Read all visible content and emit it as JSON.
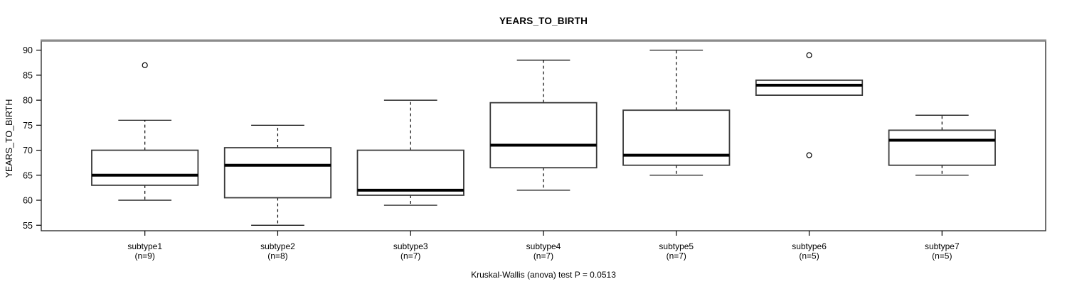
{
  "chart_data": {
    "type": "boxplot",
    "title": "YEARS_TO_BIRTH",
    "ylabel": "YEARS_TO_BIRTH",
    "caption": "Kruskal-Wallis (anova) test P = 0.0513",
    "yticks": [
      55,
      60,
      65,
      70,
      75,
      80,
      85,
      90
    ],
    "ylim": [
      53.9,
      91.8
    ],
    "grid": false,
    "legend": "none",
    "groups": [
      {
        "label": "subtype1",
        "n_label": "(n=9)",
        "n": 9,
        "whisker_low": 60,
        "q1": 63,
        "median": 65,
        "q3": 70,
        "whisker_high": 76,
        "outliers": [
          87
        ]
      },
      {
        "label": "subtype2",
        "n_label": "(n=8)",
        "n": 8,
        "whisker_low": 55,
        "q1": 60.5,
        "median": 67,
        "q3": 70.5,
        "whisker_high": 75,
        "outliers": []
      },
      {
        "label": "subtype3",
        "n_label": "(n=7)",
        "n": 7,
        "whisker_low": 59,
        "q1": 61,
        "median": 62,
        "q3": 70,
        "whisker_high": 80,
        "outliers": []
      },
      {
        "label": "subtype4",
        "n_label": "(n=7)",
        "n": 7,
        "whisker_low": 62,
        "q1": 66.5,
        "median": 71,
        "q3": 79.5,
        "whisker_high": 88,
        "outliers": []
      },
      {
        "label": "subtype5",
        "n_label": "(n=7)",
        "n": 7,
        "whisker_low": 65,
        "q1": 67,
        "median": 69,
        "q3": 78,
        "whisker_high": 90,
        "outliers": []
      },
      {
        "label": "subtype6",
        "n_label": "(n=5)",
        "n": 5,
        "whisker_low": 81,
        "q1": 81,
        "median": 83,
        "q3": 84,
        "whisker_high": 84,
        "outliers": [
          89,
          69
        ]
      },
      {
        "label": "subtype7",
        "n_label": "(n=5)",
        "n": 5,
        "whisker_low": 65,
        "q1": 67,
        "median": 72,
        "q3": 74,
        "whisker_high": 77,
        "outliers": []
      }
    ],
    "colors": {
      "background": "#ffffff",
      "box_fill": "#ffffff",
      "box_stroke": "#3a3a3a",
      "median": "#000000",
      "whisker": "#000000",
      "frame": "#222222",
      "frame_top_shadow": "#8c8c8c",
      "text": "#000000"
    }
  }
}
